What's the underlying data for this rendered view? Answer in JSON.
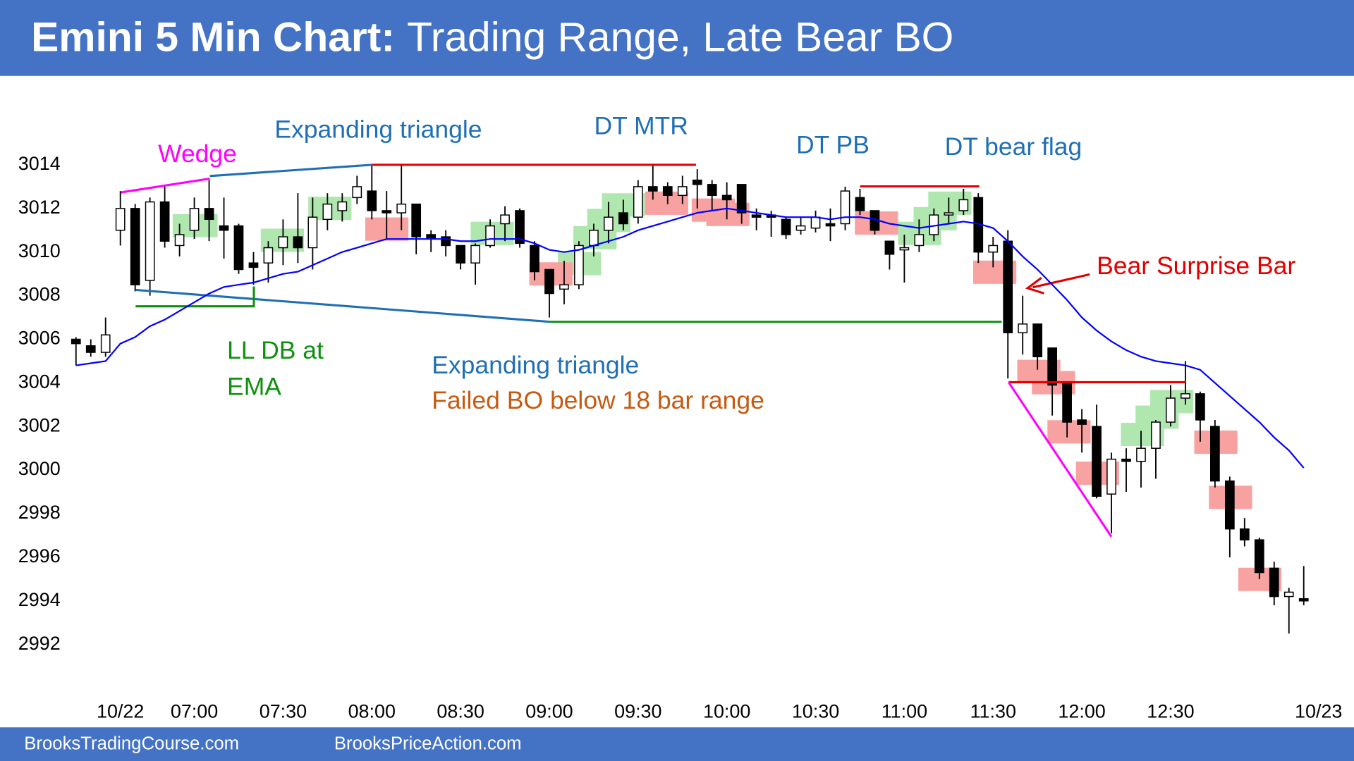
{
  "chart_data": {
    "type": "candlestick",
    "title_bold": "Emini 5 Min Chart:",
    "title": "Trading Range, Late Bear BO",
    "footer": [
      "BrooksTradingCourse.com",
      "BrooksPriceAction.com"
    ],
    "categories": [
      null,
      null,
      null,
      "10/22",
      null,
      null,
      null,
      null,
      "07:00",
      null,
      null,
      null,
      null,
      null,
      "07:30",
      null,
      null,
      null,
      null,
      null,
      "08:00",
      null,
      null,
      null,
      null,
      null,
      "08:30",
      null,
      null,
      null,
      null,
      null,
      "09:00",
      null,
      null,
      null,
      null,
      null,
      "09:30",
      null,
      null,
      null,
      null,
      null,
      "10:00",
      null,
      null,
      null,
      null,
      null,
      "10:30",
      null,
      null,
      null,
      null,
      null,
      "11:00",
      null,
      null,
      null,
      null,
      null,
      "11:30",
      null,
      null,
      null,
      null,
      null,
      "12:00",
      null,
      null,
      null,
      null,
      null,
      "12:30",
      null,
      null,
      null,
      null,
      null,
      null,
      null,
      null,
      null,
      "10/23"
    ],
    "open": [
      3006,
      3005.7,
      3005.4,
      3011,
      3012,
      3008.7,
      3012.3,
      3010.3,
      3011,
      3012,
      3011.2,
      3011.2,
      3009.5,
      3009.5,
      3010.2,
      3010.7,
      3010.2,
      3011.5,
      3011.9,
      3012.5,
      3012.8,
      3011.9,
      3011.8,
      3012.2,
      3010.8,
      3010.7,
      3010.3,
      3009.5,
      3010.3,
      3011.3,
      3011.9,
      3010.3,
      3009.2,
      3008.3,
      3008.5,
      3010.3,
      3011,
      3011.8,
      3011.6,
      3013,
      3013,
      3012.6,
      3013.3,
      3013.1,
      3012.6,
      3013.1,
      3011.7,
      3011.7,
      3011.5,
      3011,
      3011.1,
      3011.3,
      3011.3,
      3012.5,
      3011.9,
      3010.5,
      3010.1,
      3010.3,
      3010.8,
      3011.7,
      3011.9,
      3012.5,
      3010,
      3010.5,
      3006.3,
      3006.7,
      3005.6,
      3004,
      3002.3,
      3002,
      2998.9,
      3000.5,
      3000.4,
      3001,
      3002.2,
      3003.3,
      3003.5,
      3002,
      2999.5,
      2997.3,
      2996.8,
      2995.5,
      2994.2,
      2994.1,
      null
    ],
    "high": [
      3006.1,
      3006,
      3007,
      3012.8,
      3012.2,
      3012.5,
      3013,
      3011.3,
      3012.5,
      3013.3,
      3012.5,
      3011.3,
      3010,
      3010.5,
      3011.5,
      3012.7,
      3012.5,
      3012.7,
      3012.7,
      3013.5,
      3014,
      3012.8,
      3014,
      3012.2,
      3011,
      3011,
      3010.3,
      3010.4,
      3011.5,
      3012.1,
      3012,
      3010.5,
      3009.2,
      3009.6,
      3010.5,
      3011.3,
      3012.3,
      3012.4,
      3013.3,
      3014,
      3013.2,
      3013.5,
      3013.8,
      3013.3,
      3013.2,
      3013.1,
      3012,
      3011.9,
      3011.6,
      3011.6,
      3011.9,
      3012,
      3013,
      3012.9,
      3011.9,
      3010.5,
      3010.8,
      3011.5,
      3012,
      3012.5,
      3012.9,
      3012.7,
      3010.7,
      3011,
      3008,
      3006.7,
      3005.6,
      3004,
      3002.8,
      3003,
      3000.8,
      3001,
      3001.8,
      3002.3,
      3003.9,
      3005,
      3003.6,
      3002.3,
      2999.7,
      2997.8,
      2996.9,
      2995.8,
      2994.6,
      2995.6,
      null
    ],
    "low": [
      3004.8,
      3005.2,
      3005.2,
      3010.3,
      3008.2,
      3008,
      3010.2,
      3009.8,
      3010.6,
      3010.5,
      3009.7,
      3009,
      3008.5,
      3008.6,
      3009.4,
      3009.5,
      3009.2,
      3011,
      3011.4,
      3012.2,
      3011.5,
      3010.6,
      3011,
      3009.9,
      3010,
      3009.8,
      3009.2,
      3008.5,
      3010.2,
      3010.5,
      3010.2,
      3008.7,
      3007,
      3007.6,
      3008.3,
      3009.8,
      3010.4,
      3011,
      3011.3,
      3012.4,
      3012.2,
      3012.2,
      3012,
      3011.9,
      3011.5,
      3011.3,
      3011,
      3010.7,
      3010.6,
      3010.8,
      3010.9,
      3010.5,
      3011,
      3011.7,
      3010.8,
      3009.2,
      3008.6,
      3010,
      3010.5,
      3011.3,
      3011.7,
      3009.5,
      3009.3,
      3004.2,
      3005.3,
      3004.6,
      3002.5,
      3001.5,
      3000.8,
      2998.7,
      2997.1,
      2999,
      2999.2,
      2999.6,
      3002,
      3003,
      3001.3,
      2999.2,
      2996,
      2996.5,
      2995,
      2993.8,
      2992.5,
      2993.8,
      null
    ],
    "close": [
      3005.8,
      3005.4,
      3006.2,
      3012,
      3008.5,
      3012.3,
      3010.5,
      3010.8,
      3012,
      3011.5,
      3011,
      3009.2,
      3009.3,
      3010.2,
      3010.7,
      3010.2,
      3011.6,
      3012.2,
      3012.3,
      3013,
      3011.9,
      3011.8,
      3012.2,
      3010.7,
      3010.6,
      3010.3,
      3009.5,
      3010.3,
      3011.2,
      3011.7,
      3010.4,
      3009.1,
      3008.1,
      3008.5,
      3010.3,
      3011,
      3011.6,
      3011.3,
      3013,
      3012.8,
      3012.6,
      3013,
      3013.1,
      3012.6,
      3012.4,
      3011.8,
      3011.6,
      3011.6,
      3010.8,
      3011.2,
      3011.6,
      3011.2,
      3012.8,
      3011.9,
      3011,
      3009.9,
      3010.2,
      3010.8,
      3011.7,
      3011.8,
      3012.4,
      3010,
      3010.3,
      3006.3,
      3006.7,
      3005.2,
      3003.9,
      3002.2,
      3002.1,
      2998.8,
      3000.5,
      3000.4,
      3001,
      3002.2,
      3003.3,
      3003.5,
      3002.3,
      2999.5,
      2997.3,
      2996.8,
      2995.3,
      2994.2,
      2994.4,
      2994,
      null
    ],
    "ema": {
      "color": "#0000ff",
      "values": [
        3004.8,
        3004.9,
        3005.0,
        3005.8,
        3006.1,
        3006.6,
        3006.9,
        3007.3,
        3007.7,
        3008.1,
        3008.4,
        3008.5,
        3008.6,
        3008.8,
        3009.0,
        3009.1,
        3009.4,
        3009.7,
        3010.0,
        3010.2,
        3010.4,
        3010.6,
        3010.6,
        3010.6,
        3010.6,
        3010.6,
        3010.5,
        3010.5,
        3010.6,
        3010.6,
        3010.6,
        3010.4,
        3010.1,
        3010.0,
        3010.1,
        3010.3,
        3010.5,
        3010.7,
        3011.0,
        3011.2,
        3011.4,
        3011.6,
        3011.8,
        3011.9,
        3012.0,
        3011.9,
        3011.8,
        3011.7,
        3011.6,
        3011.6,
        3011.6,
        3011.5,
        3011.6,
        3011.6,
        3011.5,
        3011.3,
        3011.2,
        3011.1,
        3011.2,
        3011.3,
        3011.4,
        3011.3,
        3011.1,
        3010.5,
        3009.8,
        3009.2,
        3008.5,
        3007.8,
        3007.0,
        3006.4,
        3005.9,
        3005.5,
        3005.2,
        3005.0,
        3004.9,
        3004.8,
        3004.6,
        3004.0,
        3003.4,
        3002.8,
        3002.2,
        3001.5,
        3000.9,
        3000.1,
        null
      ]
    },
    "up_color": "#ffffff",
    "down_color": "#000000",
    "ylim": [
      2990,
      3018
    ],
    "yticks": [
      2992,
      2994,
      2996,
      2998,
      3000,
      3002,
      3004,
      3006,
      3008,
      3010,
      3012,
      3014
    ],
    "grid": false,
    "annotations": [
      {
        "text": "Wedge",
        "color": "#ff00ff"
      },
      {
        "text": "Expanding triangle",
        "color": "#1f6fb5"
      },
      {
        "text": "DT MTR",
        "color": "#1f6fb5"
      },
      {
        "text": "DT PB",
        "color": "#1f6fb5"
      },
      {
        "text": "DT bear flag",
        "color": "#1f6fb5"
      },
      {
        "text": "Bear Surprise Bar",
        "color": "#e00000"
      },
      {
        "text": "LL DB at",
        "color": "#109010"
      },
      {
        "text": "EMA",
        "color": "#109010"
      },
      {
        "text": "Expanding triangle",
        "color": "#1f6fb5"
      },
      {
        "text": "Failed BO below 18 bar range",
        "color": "#c55a11"
      }
    ]
  }
}
